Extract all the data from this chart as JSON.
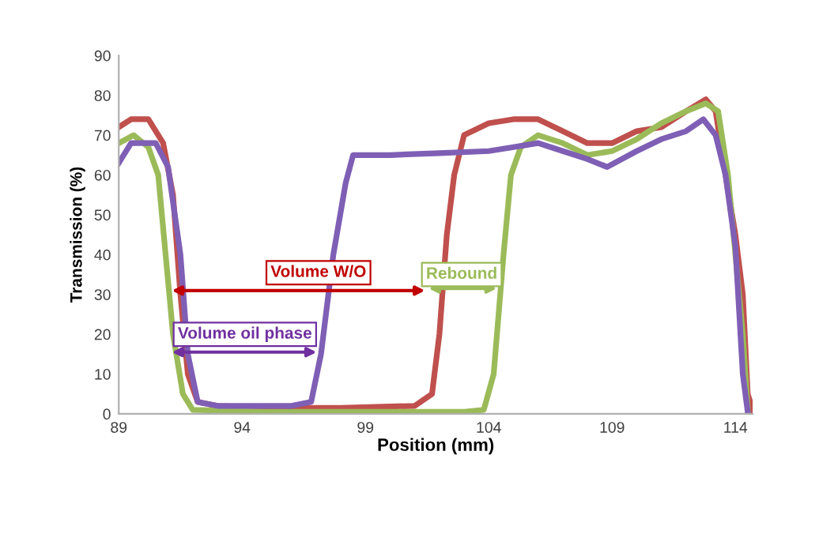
{
  "chart_data": {
    "type": "line",
    "xlabel": "Position (mm)",
    "ylabel": "Transmission (%)",
    "xlim": [
      89,
      114.7
    ],
    "xticks": [
      89,
      94,
      99,
      104,
      109,
      114
    ],
    "ylim": [
      0,
      90
    ],
    "yticks": [
      0,
      10,
      20,
      30,
      40,
      50,
      60,
      70,
      80,
      90
    ],
    "grid": false,
    "marker": "none",
    "line_style": "solid",
    "series": [
      {
        "color": "#c0504d",
        "x": [
          89,
          89.5,
          90.2,
          90.8,
          91.2,
          91.5,
          91.8,
          92.2,
          93,
          95,
          98,
          101,
          101.7,
          102,
          102.3,
          102.6,
          103,
          104,
          105,
          106,
          107,
          108,
          109,
          110,
          111,
          112,
          112.8,
          113.2,
          113.6,
          114,
          114.3,
          114.5,
          114.7
        ],
        "values": [
          72,
          74,
          74,
          68,
          55,
          30,
          10,
          3,
          2,
          1.5,
          1.5,
          2,
          5,
          20,
          45,
          60,
          70,
          73,
          74,
          74,
          71,
          68,
          68,
          71,
          72,
          76,
          79,
          76,
          60,
          45,
          30,
          5,
          1
        ]
      },
      {
        "color": "#9bbb59",
        "x": [
          89,
          89.6,
          90.2,
          90.6,
          90.9,
          91.2,
          91.6,
          92,
          95,
          100,
          103,
          103.8,
          104.2,
          104.6,
          104.9,
          105.3,
          106,
          107,
          108,
          109,
          110,
          111,
          112,
          112.8,
          113.3,
          113.7,
          114,
          114.3,
          114.5
        ],
        "values": [
          68,
          70,
          67,
          60,
          40,
          20,
          5,
          1,
          0.5,
          0.5,
          0.5,
          1,
          10,
          40,
          60,
          67,
          70,
          68,
          65,
          66,
          69,
          73,
          76,
          78,
          76,
          60,
          40,
          20,
          1
        ]
      },
      {
        "color": "#7f5fb5",
        "x": [
          89,
          89.5,
          90.5,
          91,
          91.5,
          91.8,
          92.2,
          93,
          96,
          96.8,
          97.2,
          97.7,
          98.2,
          98.5,
          100,
          102,
          104,
          105,
          106,
          107,
          108,
          108.8,
          110,
          111,
          112,
          112.7,
          113.2,
          113.6,
          114,
          114.3,
          114.5
        ],
        "values": [
          63,
          68,
          68,
          62,
          40,
          15,
          3,
          2,
          2,
          3,
          15,
          40,
          58,
          65,
          65,
          65.5,
          66,
          67,
          68,
          66,
          64,
          62,
          66,
          69,
          71,
          74,
          70,
          60,
          42,
          10,
          0.5
        ]
      }
    ],
    "annotations": [
      "Volume W/O",
      {
        "text": "Volume oil phase",
        "x": 97.2,
        "y": 15.5
      },
      {
        "text": "Rebound",
        "x": 104.5,
        "y": 31.5
      }
    ]
  }
}
